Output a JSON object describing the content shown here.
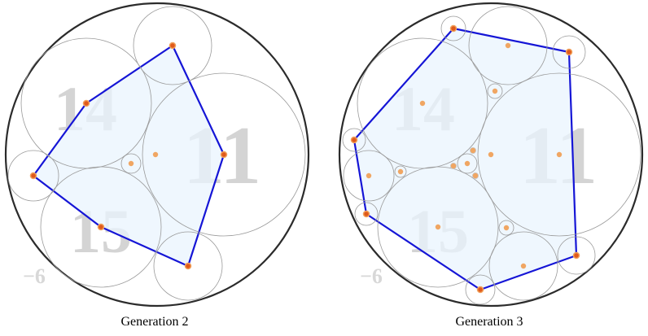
{
  "panels": [
    {
      "id": "gen2",
      "caption": "Generation 2",
      "outer_label": "−6",
      "circle_labels": [
        "14",
        "11",
        "15"
      ]
    },
    {
      "id": "gen3",
      "caption": "Generation 3",
      "outer_label": "−6",
      "circle_labels": [
        "14",
        "11",
        "15"
      ]
    }
  ],
  "colors": {
    "polygon_stroke": "#1515d6",
    "polygon_fill": "#eaf4fd",
    "vertex": "#e05a1b",
    "center_dot": "#f0a663",
    "circle_stroke": "#9a9a9a",
    "outer_circle": "#2b2b2b"
  }
}
